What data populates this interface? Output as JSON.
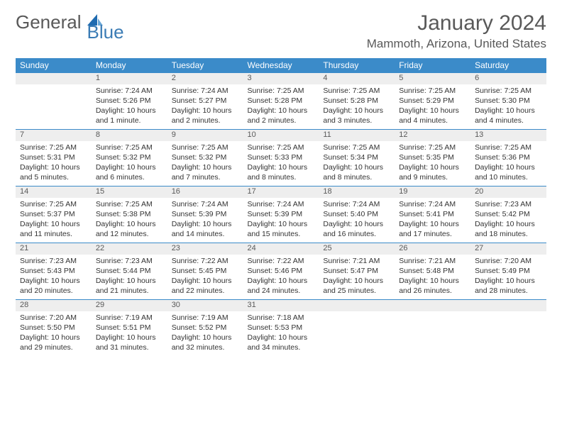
{
  "brand": {
    "part1": "General",
    "part2": "Blue"
  },
  "title": "January 2024",
  "location": "Mammoth, Arizona, United States",
  "header_bg": "#3b8bc9",
  "daynum_bg": "#eeeeee",
  "weekdays": [
    "Sunday",
    "Monday",
    "Tuesday",
    "Wednesday",
    "Thursday",
    "Friday",
    "Saturday"
  ],
  "weeks": [
    {
      "nums": [
        "",
        "1",
        "2",
        "3",
        "4",
        "5",
        "6"
      ],
      "cells": [
        null,
        {
          "sr": "7:24 AM",
          "ss": "5:26 PM",
          "dl": "10 hours and 1 minute."
        },
        {
          "sr": "7:24 AM",
          "ss": "5:27 PM",
          "dl": "10 hours and 2 minutes."
        },
        {
          "sr": "7:25 AM",
          "ss": "5:28 PM",
          "dl": "10 hours and 2 minutes."
        },
        {
          "sr": "7:25 AM",
          "ss": "5:28 PM",
          "dl": "10 hours and 3 minutes."
        },
        {
          "sr": "7:25 AM",
          "ss": "5:29 PM",
          "dl": "10 hours and 4 minutes."
        },
        {
          "sr": "7:25 AM",
          "ss": "5:30 PM",
          "dl": "10 hours and 4 minutes."
        }
      ]
    },
    {
      "nums": [
        "7",
        "8",
        "9",
        "10",
        "11",
        "12",
        "13"
      ],
      "cells": [
        {
          "sr": "7:25 AM",
          "ss": "5:31 PM",
          "dl": "10 hours and 5 minutes."
        },
        {
          "sr": "7:25 AM",
          "ss": "5:32 PM",
          "dl": "10 hours and 6 minutes."
        },
        {
          "sr": "7:25 AM",
          "ss": "5:32 PM",
          "dl": "10 hours and 7 minutes."
        },
        {
          "sr": "7:25 AM",
          "ss": "5:33 PM",
          "dl": "10 hours and 8 minutes."
        },
        {
          "sr": "7:25 AM",
          "ss": "5:34 PM",
          "dl": "10 hours and 8 minutes."
        },
        {
          "sr": "7:25 AM",
          "ss": "5:35 PM",
          "dl": "10 hours and 9 minutes."
        },
        {
          "sr": "7:25 AM",
          "ss": "5:36 PM",
          "dl": "10 hours and 10 minutes."
        }
      ]
    },
    {
      "nums": [
        "14",
        "15",
        "16",
        "17",
        "18",
        "19",
        "20"
      ],
      "cells": [
        {
          "sr": "7:25 AM",
          "ss": "5:37 PM",
          "dl": "10 hours and 11 minutes."
        },
        {
          "sr": "7:25 AM",
          "ss": "5:38 PM",
          "dl": "10 hours and 12 minutes."
        },
        {
          "sr": "7:24 AM",
          "ss": "5:39 PM",
          "dl": "10 hours and 14 minutes."
        },
        {
          "sr": "7:24 AM",
          "ss": "5:39 PM",
          "dl": "10 hours and 15 minutes."
        },
        {
          "sr": "7:24 AM",
          "ss": "5:40 PM",
          "dl": "10 hours and 16 minutes."
        },
        {
          "sr": "7:24 AM",
          "ss": "5:41 PM",
          "dl": "10 hours and 17 minutes."
        },
        {
          "sr": "7:23 AM",
          "ss": "5:42 PM",
          "dl": "10 hours and 18 minutes."
        }
      ]
    },
    {
      "nums": [
        "21",
        "22",
        "23",
        "24",
        "25",
        "26",
        "27"
      ],
      "cells": [
        {
          "sr": "7:23 AM",
          "ss": "5:43 PM",
          "dl": "10 hours and 20 minutes."
        },
        {
          "sr": "7:23 AM",
          "ss": "5:44 PM",
          "dl": "10 hours and 21 minutes."
        },
        {
          "sr": "7:22 AM",
          "ss": "5:45 PM",
          "dl": "10 hours and 22 minutes."
        },
        {
          "sr": "7:22 AM",
          "ss": "5:46 PM",
          "dl": "10 hours and 24 minutes."
        },
        {
          "sr": "7:21 AM",
          "ss": "5:47 PM",
          "dl": "10 hours and 25 minutes."
        },
        {
          "sr": "7:21 AM",
          "ss": "5:48 PM",
          "dl": "10 hours and 26 minutes."
        },
        {
          "sr": "7:20 AM",
          "ss": "5:49 PM",
          "dl": "10 hours and 28 minutes."
        }
      ]
    },
    {
      "nums": [
        "28",
        "29",
        "30",
        "31",
        "",
        "",
        ""
      ],
      "cells": [
        {
          "sr": "7:20 AM",
          "ss": "5:50 PM",
          "dl": "10 hours and 29 minutes."
        },
        {
          "sr": "7:19 AM",
          "ss": "5:51 PM",
          "dl": "10 hours and 31 minutes."
        },
        {
          "sr": "7:19 AM",
          "ss": "5:52 PM",
          "dl": "10 hours and 32 minutes."
        },
        {
          "sr": "7:18 AM",
          "ss": "5:53 PM",
          "dl": "10 hours and 34 minutes."
        },
        null,
        null,
        null
      ]
    }
  ]
}
